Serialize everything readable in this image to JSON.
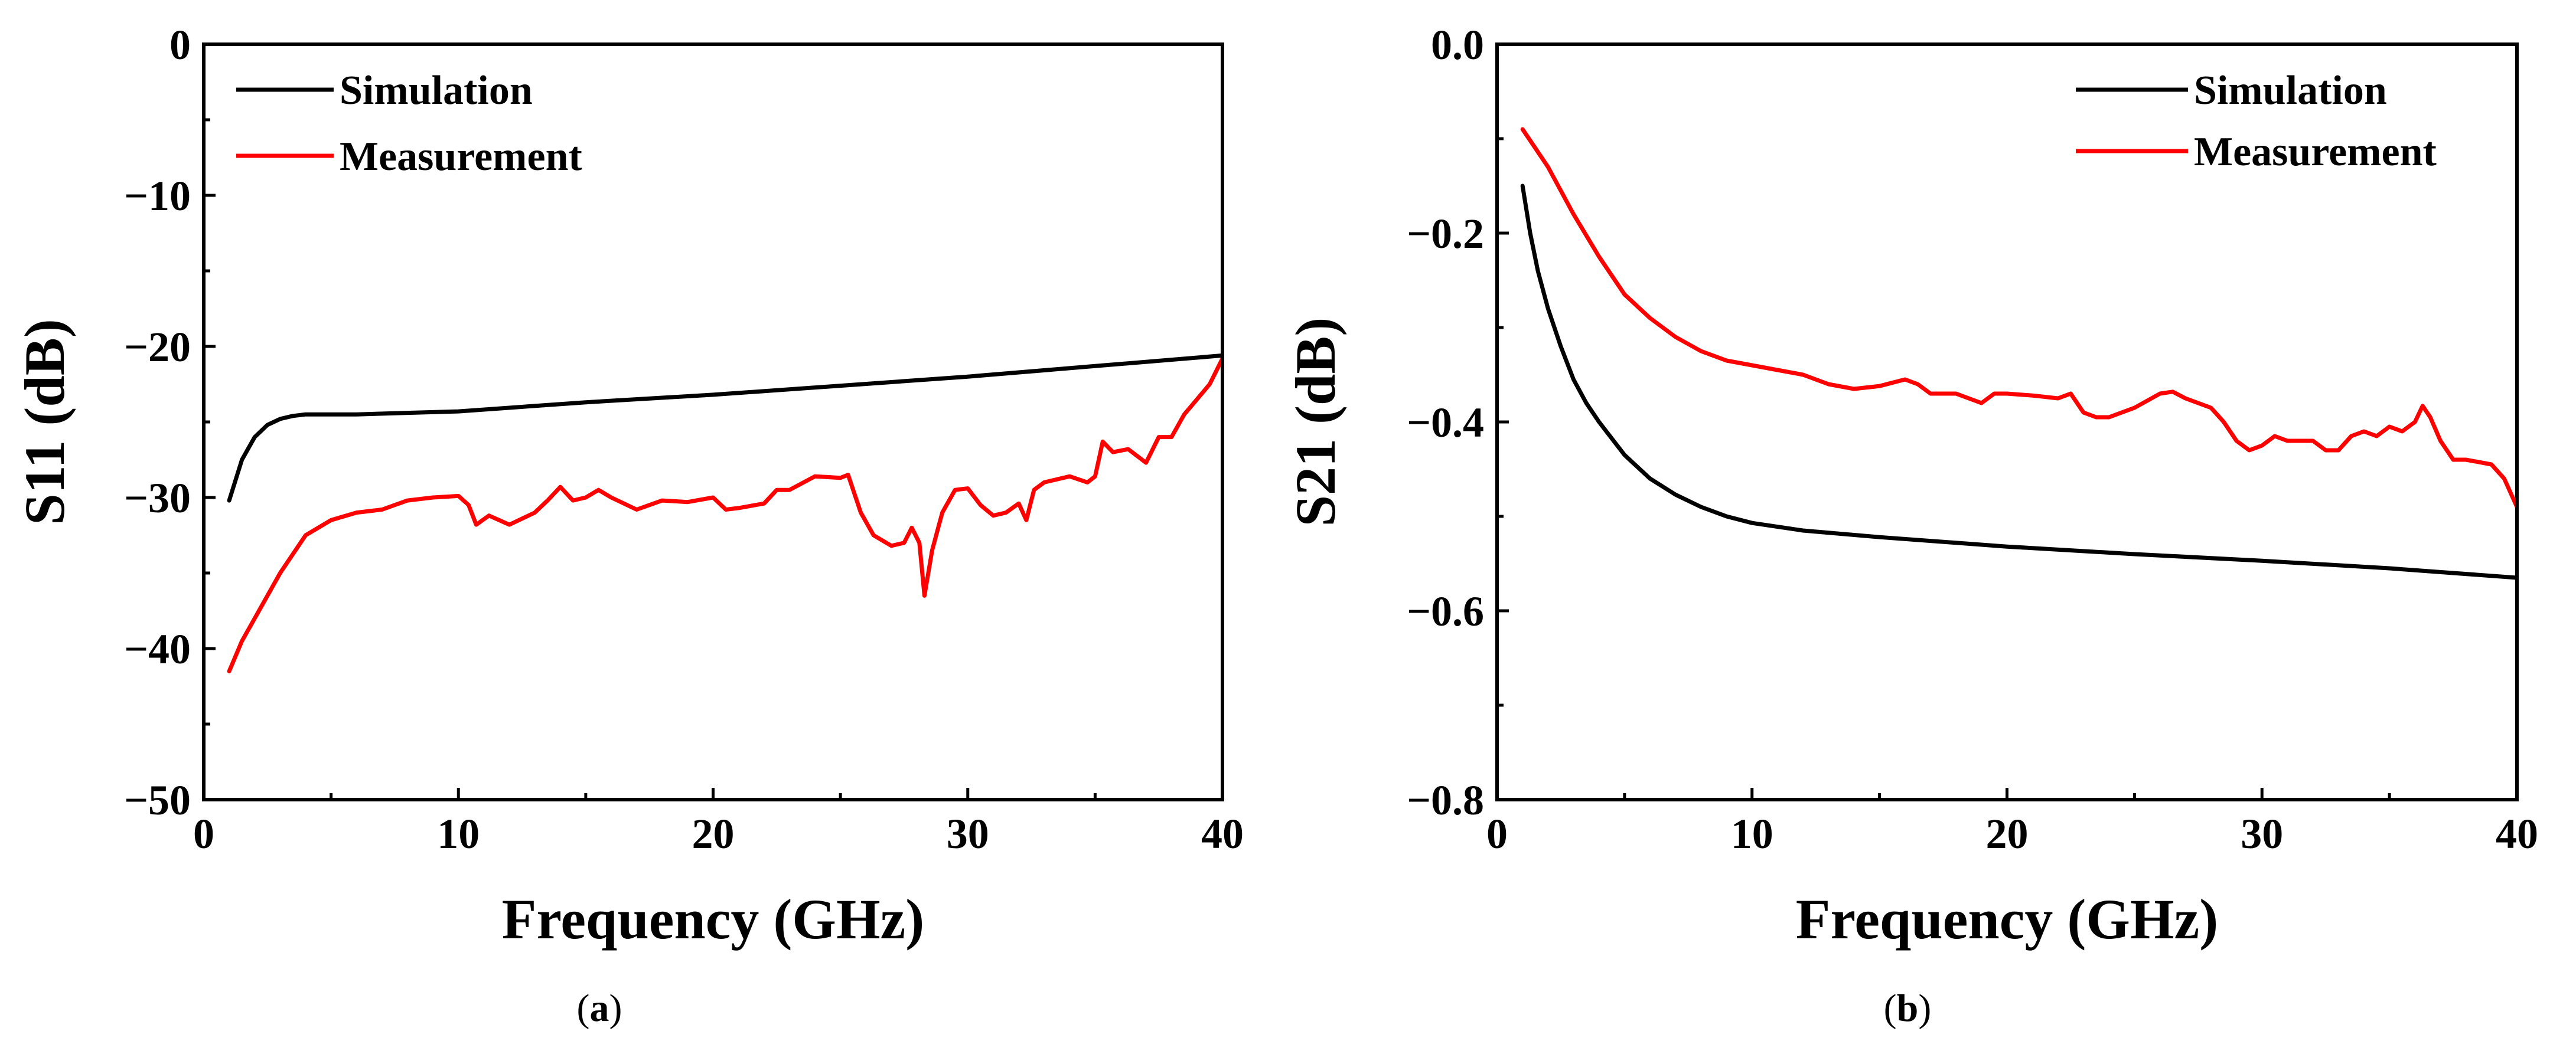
{
  "chart_data": [
    {
      "type": "line",
      "panel_label": "(a)",
      "panel_label_bold": "a",
      "xlabel": "Frequency (GHz)",
      "ylabel": "S11 (dB)",
      "xlim": [
        0,
        40
      ],
      "ylim": [
        -50,
        0
      ],
      "xticks": [
        0,
        10,
        20,
        30,
        40
      ],
      "xtick_labels": [
        "0",
        "10",
        "20",
        "30",
        "40"
      ],
      "yticks": [
        0,
        -10,
        -20,
        -30,
        -40,
        -50
      ],
      "ytick_labels": [
        "0",
        "−10",
        "−20",
        "−30",
        "−40",
        "−50"
      ],
      "grid": false,
      "legend_position": "top-left",
      "series": [
        {
          "name": "Simulation",
          "color": "#000000",
          "x": [
            1,
            1.5,
            2,
            2.5,
            3,
            3.5,
            4,
            5,
            6,
            8,
            10,
            15,
            20,
            25,
            30,
            35,
            40
          ],
          "y": [
            -30.2,
            -27.5,
            -26.0,
            -25.2,
            -24.8,
            -24.6,
            -24.5,
            -24.5,
            -24.5,
            -24.4,
            -24.3,
            -23.7,
            -23.2,
            -22.6,
            -22.0,
            -21.3,
            -20.6
          ]
        },
        {
          "name": "Measurement",
          "color": "#ff0000",
          "x": [
            1,
            1.5,
            2,
            3,
            4,
            5,
            6,
            7,
            8,
            9,
            10,
            10.4,
            10.7,
            11.2,
            12,
            13,
            13.5,
            14,
            14.5,
            15,
            15.5,
            16,
            17,
            18,
            19,
            20,
            20.5,
            21,
            22,
            22.5,
            23,
            24,
            25,
            25.3,
            25.8,
            26.3,
            27,
            27.5,
            27.8,
            28.1,
            28.3,
            28.6,
            29,
            29.5,
            30,
            30.5,
            31,
            31.5,
            32,
            32.3,
            32.6,
            33,
            34,
            34.7,
            35,
            35.3,
            35.7,
            36.3,
            37,
            37.5,
            38,
            38.5,
            39,
            39.5,
            40
          ],
          "y": [
            -41.5,
            -39.5,
            -38.0,
            -35.0,
            -32.5,
            -31.5,
            -31.0,
            -30.8,
            -30.2,
            -30.0,
            -29.9,
            -30.5,
            -31.8,
            -31.2,
            -31.8,
            -31.0,
            -30.2,
            -29.3,
            -30.2,
            -30.0,
            -29.5,
            -30.0,
            -30.8,
            -30.2,
            -30.3,
            -30.0,
            -30.8,
            -30.7,
            -30.4,
            -29.5,
            -29.5,
            -28.6,
            -28.7,
            -28.5,
            -31.0,
            -32.5,
            -33.2,
            -33.0,
            -32.0,
            -33.0,
            -36.5,
            -33.5,
            -31.0,
            -29.5,
            -29.4,
            -30.5,
            -31.2,
            -31.0,
            -30.4,
            -31.5,
            -29.5,
            -29.0,
            -28.6,
            -29.0,
            -28.6,
            -26.3,
            -27.0,
            -26.8,
            -27.7,
            -26.0,
            -26.0,
            -24.5,
            -23.5,
            -22.5,
            -20.8
          ]
        }
      ]
    },
    {
      "type": "line",
      "panel_label": "(b)",
      "panel_label_bold": "b",
      "xlabel": "Frequency (GHz)",
      "ylabel": "S21 (dB)",
      "xlim": [
        0,
        40
      ],
      "ylim": [
        -0.8,
        0.0
      ],
      "xticks": [
        0,
        10,
        20,
        30,
        40
      ],
      "xtick_labels": [
        "0",
        "10",
        "20",
        "30",
        "40"
      ],
      "yticks": [
        0.0,
        -0.2,
        -0.4,
        -0.6,
        -0.8
      ],
      "ytick_labels": [
        "0.0",
        "−0.2",
        "−0.4",
        "−0.6",
        "−0.8"
      ],
      "grid": false,
      "legend_position": "top-right",
      "series": [
        {
          "name": "Simulation",
          "color": "#000000",
          "x": [
            1,
            1.3,
            1.6,
            2,
            2.5,
            3,
            3.5,
            4,
            5,
            6,
            7,
            8,
            9,
            10,
            12,
            15,
            20,
            25,
            30,
            35,
            40
          ],
          "y": [
            -0.15,
            -0.2,
            -0.24,
            -0.28,
            -0.32,
            -0.355,
            -0.38,
            -0.4,
            -0.435,
            -0.46,
            -0.477,
            -0.49,
            -0.5,
            -0.507,
            -0.515,
            -0.522,
            -0.532,
            -0.54,
            -0.547,
            -0.555,
            -0.565
          ]
        },
        {
          "name": "Measurement",
          "color": "#ff0000",
          "x": [
            1,
            1.5,
            2,
            2.5,
            3,
            4,
            5,
            6,
            7,
            8,
            9,
            10,
            11,
            12,
            13,
            14,
            15,
            16,
            16.5,
            17,
            18,
            19,
            19.5,
            20,
            21,
            22,
            22.5,
            23,
            23.5,
            24,
            25,
            26,
            26.5,
            27,
            27.5,
            28,
            28.5,
            29,
            29.5,
            30,
            30.5,
            31,
            32,
            32.5,
            33,
            33.5,
            34,
            34.5,
            35,
            35.5,
            36,
            36.3,
            36.6,
            37,
            37.5,
            38,
            39,
            39.5,
            40
          ],
          "y": [
            -0.09,
            -0.11,
            -0.13,
            -0.155,
            -0.18,
            -0.225,
            -0.265,
            -0.29,
            -0.31,
            -0.325,
            -0.335,
            -0.34,
            -0.345,
            -0.35,
            -0.36,
            -0.365,
            -0.362,
            -0.355,
            -0.36,
            -0.37,
            -0.37,
            -0.38,
            -0.37,
            -0.37,
            -0.372,
            -0.375,
            -0.37,
            -0.39,
            -0.395,
            -0.395,
            -0.385,
            -0.37,
            -0.368,
            -0.375,
            -0.38,
            -0.385,
            -0.4,
            -0.42,
            -0.43,
            -0.425,
            -0.415,
            -0.42,
            -0.42,
            -0.43,
            -0.43,
            -0.415,
            -0.41,
            -0.415,
            -0.405,
            -0.41,
            -0.4,
            -0.383,
            -0.395,
            -0.42,
            -0.44,
            -0.44,
            -0.445,
            -0.46,
            -0.49
          ]
        }
      ]
    }
  ]
}
